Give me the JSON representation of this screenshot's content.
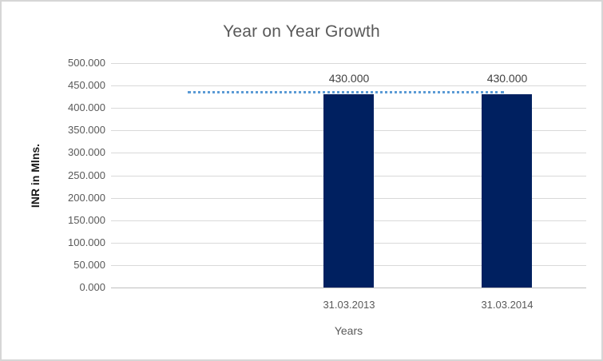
{
  "chart": {
    "colors": {
      "bar": "#002060",
      "reference_line": "#5b9bd5",
      "gridline": "#d9d9d9",
      "axis_line": "#bfbfbf",
      "tick_text": "#595959",
      "title_text": "#595959",
      "data_label_text": "#404040",
      "y_title_text": "#1a1a1a",
      "border": "#d6d6d6"
    }
  },
  "chart_data": {
    "type": "bar",
    "title": "Year on Year Growth",
    "xlabel": "Years",
    "ylabel": "INR in Mlns.",
    "categories": [
      "31.03.2013",
      "31.03.2014"
    ],
    "values": [
      430,
      430
    ],
    "data_labels": [
      "430.000",
      "430.000"
    ],
    "ylim": [
      0,
      500
    ],
    "ytick_step": 50,
    "ytick_labels": [
      "0.000",
      "50.000",
      "100.000",
      "150.000",
      "200.000",
      "250.000",
      "300.000",
      "350.000",
      "400.000",
      "450.000",
      "500.000"
    ],
    "grid": true,
    "legend": "none",
    "reference_line": {
      "value": 430,
      "style": "dotted"
    }
  }
}
